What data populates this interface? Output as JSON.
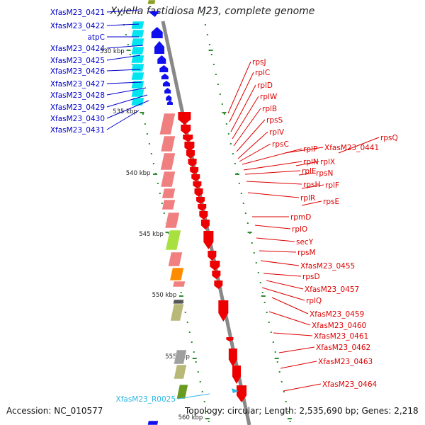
{
  "title": "Xylella fastidiosa M23, complete genome",
  "accession": "Accession: NC_010577",
  "topology": "Topology: circular; Length: 2,535,690 bp; Genes: 2,218",
  "colors": {
    "backbone": "#888888",
    "tick": "#2e8b2e",
    "reverse_label": "#0000cc",
    "forward_label": "#dd0000",
    "rna_label": "#2ab7e8",
    "cyan_box": "#00e5f0",
    "pink_box": "#f08080",
    "green_box": "#a8e040",
    "orange_box": "#ff8c00",
    "olive_box": "#b8b878",
    "grey_box": "#a0a0a0"
  },
  "scale_labels": [
    "530 kbp",
    "535 kbp",
    "540 kbp",
    "545 kbp",
    "550 kbp",
    "555 kbp",
    "560 kbp"
  ],
  "left_genes": [
    "XfasM23_0421",
    "XfasM23_0422",
    "atpC",
    "XfasM23_0424",
    "XfasM23_0425",
    "XfasM23_0426",
    "XfasM23_0427",
    "XfasM23_0428",
    "XfasM23_0429",
    "XfasM23_0430",
    "XfasM23_0431"
  ],
  "right_genes": [
    "rpsJ",
    "rplC",
    "rplD",
    "rplW",
    "rplB",
    "rpsS",
    "rplV",
    "rpsC",
    "rplP",
    "XfasM23_0441",
    "rpsQ",
    "rplN",
    "rplX",
    "rplE",
    "rpsN",
    "rpsH",
    "rplF",
    "rplR",
    "rpsE",
    "rpmD",
    "rplO",
    "secY",
    "rpsM",
    "XfasM23_0455",
    "rpsD",
    "XfasM23_0457",
    "rplQ",
    "XfasM23_0459",
    "XfasM23_0460",
    "XfasM23_0461",
    "XfasM23_0462",
    "XfasM23_0463",
    "XfasM23_0464"
  ],
  "rna_genes": [
    "XfasM23_R0025"
  ]
}
